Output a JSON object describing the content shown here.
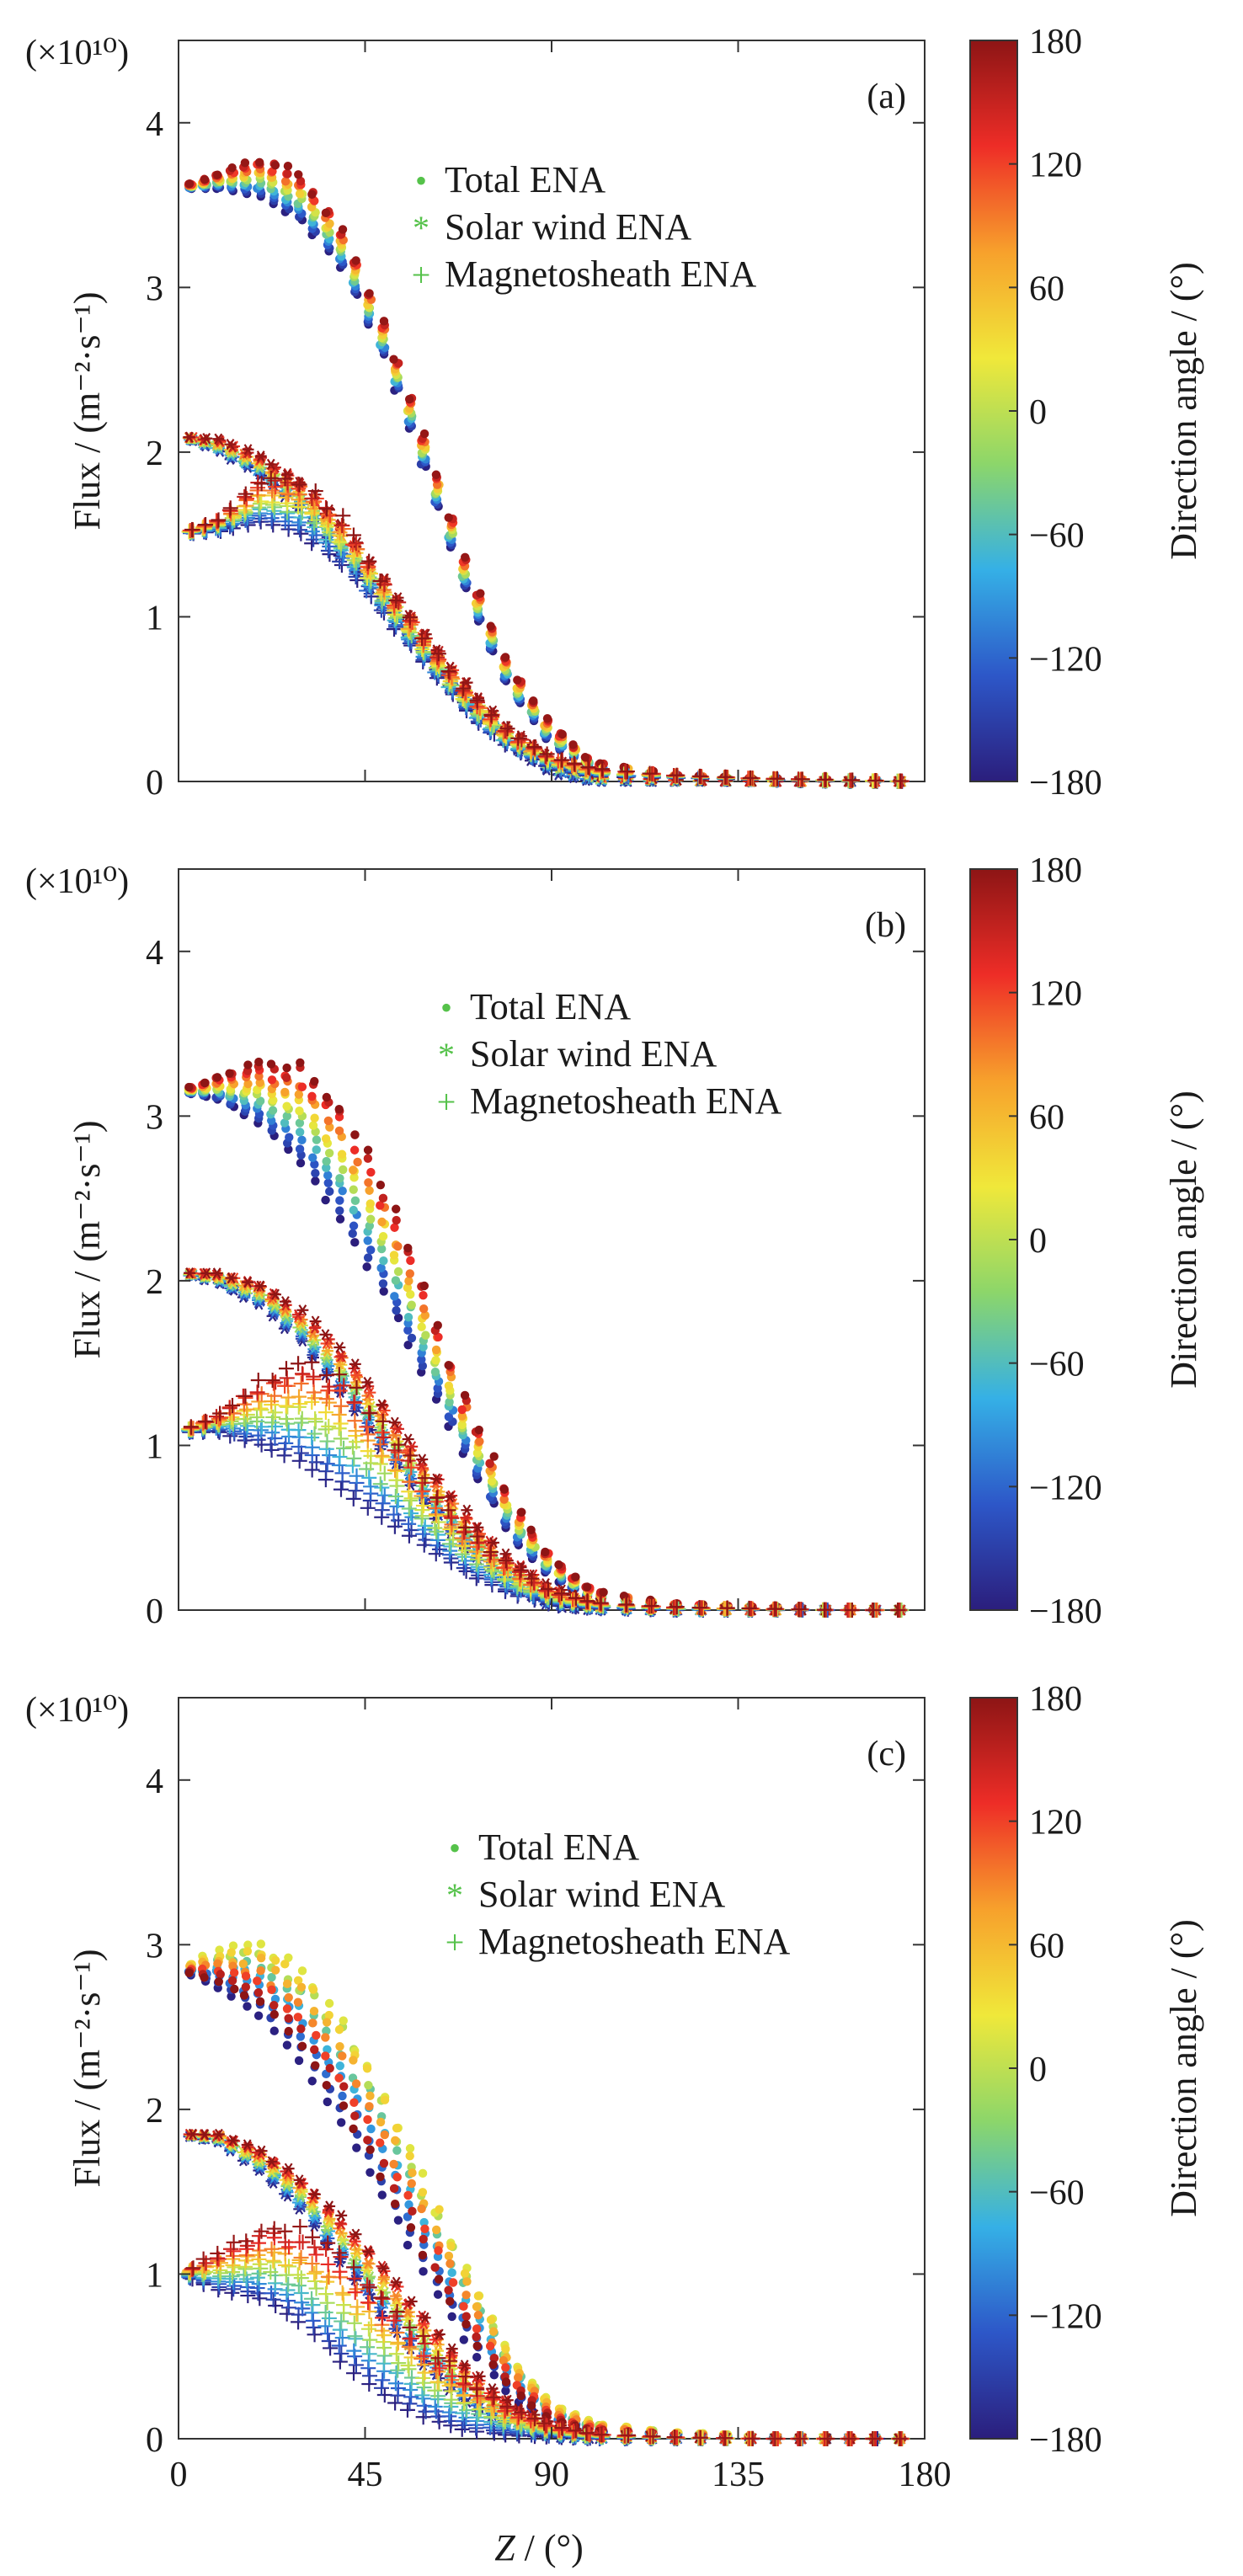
{
  "figure": {
    "xlabel_italic": "Z",
    "xlabel_rest": " / (°)",
    "x_ticks": [
      "0",
      "45",
      "90",
      "135",
      "180"
    ]
  },
  "legend": {
    "total": "Total ENA",
    "solar": "Solar wind ENA",
    "sheath": "Magnetosheath ENA",
    "total_marker": "•",
    "solar_marker": "*",
    "sheath_marker": "+"
  },
  "colorbar": {
    "label": "Direction angle / (°)",
    "tick_labels": [
      "180",
      "120",
      "60",
      "0",
      "−60",
      "−120",
      "−180"
    ],
    "colors": [
      "#2b1e7c",
      "#2d57c8",
      "#35b0e6",
      "#8cd66a",
      "#f0e83a",
      "#f7a12c",
      "#ee2d27",
      "#8d1515"
    ]
  },
  "chart_data": [
    {
      "panel": "(a)",
      "type": "scatter",
      "xlabel": "Z / (°)",
      "ylabel": "Flux / (m⁻²·s⁻¹)",
      "scale_label": "(×10¹⁰)",
      "xlim": [
        0,
        180
      ],
      "ylim": [
        0,
        4.5
      ],
      "x_ticks": [
        0,
        45,
        90,
        135,
        180
      ],
      "y_ticks": [
        0,
        1,
        2,
        3,
        4
      ],
      "y_tick_labels": [
        "0",
        "1",
        "2",
        "3",
        "4"
      ],
      "colorbar_range": [
        -180,
        180
      ],
      "legend": [
        "Total ENA",
        "Solar wind ENA",
        "Magnetosheath ENA"
      ],
      "series": [
        {
          "name": "Total ENA",
          "x": [
            0,
            10,
            20,
            30,
            40,
            50,
            60,
            70,
            80,
            90,
            100,
            120,
            140,
            160,
            180
          ],
          "y_min": [
            3.6,
            3.6,
            3.55,
            3.4,
            3.1,
            2.55,
            1.85,
            1.1,
            0.55,
            0.22,
            0.08,
            0.02,
            0.01,
            0.01,
            0.0
          ],
          "y_max": [
            3.6,
            3.7,
            3.8,
            3.7,
            3.35,
            2.75,
            2.05,
            1.3,
            0.7,
            0.35,
            0.12,
            0.04,
            0.02,
            0.01,
            0.0
          ]
        },
        {
          "name": "Solar wind ENA",
          "x": [
            0,
            10,
            20,
            30,
            40,
            50,
            60,
            70,
            80,
            90,
            100,
            120,
            140,
            160,
            180
          ],
          "y_min": [
            2.1,
            2.0,
            1.85,
            1.65,
            1.35,
            1.05,
            0.75,
            0.45,
            0.22,
            0.05,
            0.0,
            0.0,
            0.0,
            0.0,
            0.0
          ],
          "y_max": [
            2.1,
            2.08,
            1.98,
            1.82,
            1.55,
            1.22,
            0.88,
            0.58,
            0.32,
            0.15,
            0.04,
            0.01,
            0.0,
            0.0,
            0.0
          ]
        },
        {
          "name": "Magnetosheath ENA",
          "x": [
            0,
            10,
            20,
            30,
            40,
            50,
            60,
            70,
            80,
            90,
            100,
            120,
            140,
            160,
            180
          ],
          "y_min": [
            1.5,
            1.52,
            1.58,
            1.5,
            1.3,
            1.0,
            0.7,
            0.4,
            0.2,
            0.08,
            0.03,
            0.02,
            0.01,
            0.0,
            0.0
          ],
          "y_max": [
            1.5,
            1.6,
            1.85,
            1.85,
            1.6,
            1.2,
            0.85,
            0.55,
            0.3,
            0.15,
            0.08,
            0.04,
            0.02,
            0.01,
            0.0
          ]
        }
      ]
    },
    {
      "panel": "(b)",
      "type": "scatter",
      "xlabel": "Z / (°)",
      "ylabel": "Flux / (m⁻²·s⁻¹)",
      "scale_label": "(×10¹⁰)",
      "xlim": [
        0,
        180
      ],
      "ylim": [
        0,
        4.5
      ],
      "x_ticks": [
        0,
        45,
        90,
        135,
        180
      ],
      "y_ticks": [
        0,
        1,
        2,
        3,
        4
      ],
      "y_tick_labels": [
        "0",
        "1",
        "2",
        "3",
        "4"
      ],
      "colorbar_range": [
        -180,
        180
      ],
      "legend": [
        "Total ENA",
        "Solar wind ENA",
        "Magnetosheath ENA"
      ],
      "series": [
        {
          "name": "Total ENA",
          "x": [
            0,
            10,
            20,
            30,
            40,
            50,
            60,
            70,
            80,
            90,
            100,
            120,
            140,
            160,
            180
          ],
          "y_min": [
            3.15,
            3.1,
            2.95,
            2.7,
            2.35,
            1.9,
            1.4,
            0.9,
            0.45,
            0.2,
            0.06,
            0.02,
            0.01,
            0.0,
            0.0
          ],
          "y_max": [
            3.15,
            3.25,
            3.35,
            3.35,
            3.1,
            2.6,
            1.95,
            1.25,
            0.7,
            0.32,
            0.12,
            0.04,
            0.02,
            0.01,
            0.0
          ]
        },
        {
          "name": "Solar wind ENA",
          "x": [
            0,
            10,
            20,
            30,
            40,
            50,
            60,
            70,
            80,
            90,
            100,
            120,
            140,
            160,
            180
          ],
          "y_min": [
            2.05,
            1.98,
            1.85,
            1.62,
            1.3,
            0.95,
            0.62,
            0.35,
            0.15,
            0.02,
            0.0,
            0.0,
            0.0,
            0.0,
            0.0
          ],
          "y_max": [
            2.05,
            2.05,
            1.98,
            1.82,
            1.58,
            1.25,
            0.9,
            0.58,
            0.32,
            0.15,
            0.05,
            0.01,
            0.0,
            0.0,
            0.0
          ]
        },
        {
          "name": "Magnetosheath ENA",
          "x": [
            0,
            10,
            20,
            30,
            40,
            50,
            60,
            70,
            80,
            90,
            100,
            120,
            140,
            160,
            180
          ],
          "y_min": [
            1.08,
            1.08,
            1.0,
            0.9,
            0.72,
            0.55,
            0.38,
            0.22,
            0.1,
            0.03,
            0.01,
            0.0,
            0.0,
            0.0,
            0.0
          ],
          "y_max": [
            1.08,
            1.2,
            1.42,
            1.55,
            1.45,
            1.15,
            0.8,
            0.5,
            0.28,
            0.12,
            0.05,
            0.02,
            0.01,
            0.0,
            0.0
          ]
        }
      ]
    },
    {
      "panel": "(c)",
      "type": "scatter",
      "xlabel": "Z / (°)",
      "ylabel": "Flux / (m⁻²·s⁻¹)",
      "scale_label": "(×10¹⁰)",
      "xlim": [
        0,
        180
      ],
      "ylim": [
        0,
        4.5
      ],
      "x_ticks": [
        0,
        45,
        90,
        135,
        180
      ],
      "y_ticks": [
        0,
        1,
        2,
        3,
        4
      ],
      "y_tick_labels": [
        "0",
        "1",
        "2",
        "3",
        "4"
      ],
      "colorbar_range": [
        -180,
        180
      ],
      "legend": [
        "Total ENA",
        "Solar wind ENA",
        "Magnetosheath ENA"
      ],
      "series": [
        {
          "name": "Total ENA",
          "x": [
            0,
            10,
            20,
            30,
            40,
            50,
            60,
            70,
            80,
            90,
            100,
            120,
            140,
            160,
            180
          ],
          "y_min": [
            2.85,
            2.7,
            2.5,
            2.2,
            1.8,
            1.35,
            0.9,
            0.5,
            0.22,
            0.08,
            0.03,
            0.01,
            0.0,
            0.0,
            0.0
          ],
          "y_max": [
            2.85,
            3.0,
            3.05,
            2.9,
            2.6,
            2.15,
            1.6,
            1.05,
            0.55,
            0.22,
            0.1,
            0.04,
            0.02,
            0.01,
            0.0
          ]
        },
        {
          "name": "Solar wind ENA",
          "x": [
            0,
            10,
            20,
            30,
            40,
            50,
            60,
            70,
            80,
            90,
            100,
            120,
            140,
            160,
            180
          ],
          "y_min": [
            1.85,
            1.8,
            1.62,
            1.38,
            1.05,
            0.72,
            0.42,
            0.2,
            0.07,
            0.01,
            0.0,
            0.0,
            0.0,
            0.0,
            0.0
          ],
          "y_max": [
            1.85,
            1.85,
            1.75,
            1.58,
            1.35,
            1.05,
            0.75,
            0.45,
            0.22,
            0.1,
            0.03,
            0.01,
            0.0,
            0.0,
            0.0
          ]
        },
        {
          "name": "Magnetosheath ENA",
          "x": [
            0,
            10,
            20,
            30,
            40,
            50,
            60,
            70,
            80,
            90,
            100,
            120,
            140,
            160,
            180
          ],
          "y_min": [
            1.0,
            0.9,
            0.85,
            0.7,
            0.45,
            0.25,
            0.12,
            0.05,
            0.02,
            0.01,
            0.0,
            0.0,
            0.0,
            0.0,
            0.0
          ],
          "y_max": [
            1.0,
            1.15,
            1.3,
            1.3,
            1.15,
            0.88,
            0.6,
            0.38,
            0.2,
            0.08,
            0.03,
            0.01,
            0.0,
            0.0,
            0.0
          ]
        }
      ]
    }
  ]
}
